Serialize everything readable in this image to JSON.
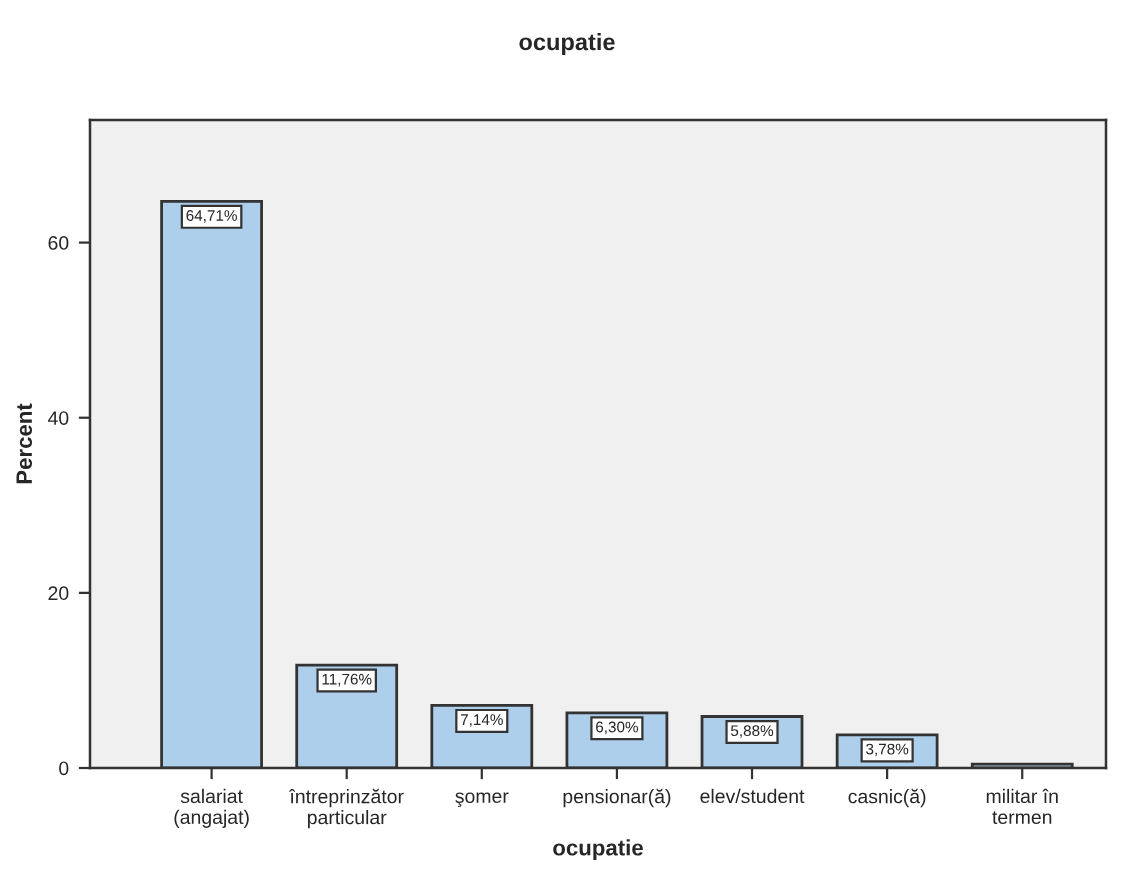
{
  "chart_data": {
    "type": "bar",
    "title": "ocupatie",
    "xlabel": "ocupatie",
    "ylabel": "Percent",
    "categories": [
      "salariat\n(angajat)",
      "întreprinzător\nparticular",
      "şomer",
      "pensionar(ă)",
      "elev/student",
      "casnic(ă)",
      "militar în\ntermen"
    ],
    "values": [
      64.71,
      11.76,
      7.14,
      6.3,
      5.88,
      3.78,
      0.43
    ],
    "value_labels": [
      "64,71%",
      "11,76%",
      "7,14%",
      "6,30%",
      "5,88%",
      "3,78%",
      null
    ],
    "color": "#aecfeb",
    "ylim": [
      0,
      74
    ],
    "yticks": [
      0,
      20,
      40,
      60
    ],
    "grid": false,
    "legend": false
  }
}
